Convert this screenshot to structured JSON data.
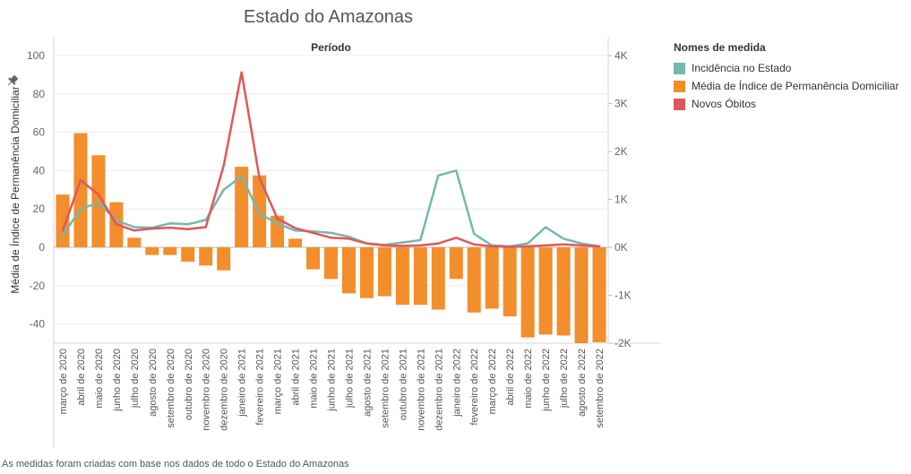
{
  "title": "Estado do Amazonas",
  "footnote": "As medidas foram criadas com base nos dados de todo o Estado do Amazonas",
  "legend": {
    "title": "Nomes de medida",
    "items": [
      {
        "label": "Incidência no Estado",
        "color": "#76b7b2"
      },
      {
        "label": "Média de Índice de Permanência Domiciliar",
        "color": "#f28e2b"
      },
      {
        "label": "Novos Óbitos",
        "color": "#e15759"
      }
    ]
  },
  "chart_data": {
    "type": "bar",
    "title": "Estado do Amazonas",
    "column_header": "Período",
    "ylabel_left": "Média de Índice de Permanência Domiciliar",
    "ylim_left": [
      -50,
      100
    ],
    "yticks_left": [
      100,
      80,
      60,
      40,
      20,
      0,
      -20,
      -40
    ],
    "ylim_right": [
      -2000,
      4000
    ],
    "yticks_right": [
      {
        "value": 4000,
        "label": "4K"
      },
      {
        "value": 3000,
        "label": "3K"
      },
      {
        "value": 2000,
        "label": "2K"
      },
      {
        "value": 1000,
        "label": "1K"
      },
      {
        "value": 0,
        "label": "0K"
      },
      {
        "value": -1000,
        "label": "-1K"
      },
      {
        "value": -2000,
        "label": "-2K"
      }
    ],
    "categories": [
      "março de 2020",
      "abril de 2020",
      "maio de 2020",
      "junho de 2020",
      "julho de 2020",
      "agosto de 2020",
      "setembro de 2020",
      "outubro de 2020",
      "novembro de 2020",
      "dezembro de 2020",
      "janeiro de 2021",
      "fevereiro de 2021",
      "março de 2021",
      "abril de 2021",
      "maio de 2021",
      "junho de 2021",
      "julho de 2021",
      "agosto de 2021",
      "setembro de 2021",
      "outubro de 2021",
      "novembro de 2021",
      "dezembro de 2021",
      "janeiro de 2022",
      "fevereiro de 2022",
      "março de 2022",
      "abril de 2022",
      "maio de 2022",
      "junho de 2022",
      "julho de 2022",
      "agosto de 2022",
      "setembro de 2022"
    ],
    "series": [
      {
        "name": "Média de Índice de Permanência Domiciliar",
        "axis": "left",
        "kind": "bar",
        "color": "#f28e2b",
        "values": [
          27.5,
          59.5,
          48,
          23.5,
          5,
          -4,
          -4,
          -7.5,
          -9.5,
          -12,
          42,
          37.5,
          16.5,
          4.5,
          -11.5,
          -16.5,
          -24,
          -26.5,
          -25.5,
          -30,
          -30,
          -32.5,
          -16.5,
          -34,
          -32,
          -36,
          -47,
          -45.5,
          -46,
          -50,
          -49.5
        ]
      },
      {
        "name": "Incidência no Estado",
        "axis": "right",
        "kind": "line",
        "color": "#76b7b2",
        "values": [
          250,
          800,
          930,
          560,
          420,
          410,
          500,
          480,
          570,
          1200,
          1480,
          700,
          500,
          350,
          330,
          300,
          220,
          80,
          50,
          100,
          150,
          1500,
          1600,
          280,
          40,
          20,
          80,
          420,
          180,
          80,
          20
        ]
      },
      {
        "name": "Novos Óbitos",
        "axis": "right",
        "kind": "line",
        "color": "#e15759",
        "values": [
          350,
          1400,
          1100,
          480,
          350,
          390,
          410,
          380,
          420,
          1700,
          3650,
          1450,
          600,
          400,
          300,
          200,
          180,
          80,
          40,
          30,
          40,
          80,
          200,
          60,
          20,
          10,
          20,
          40,
          60,
          40,
          20
        ]
      }
    ]
  }
}
